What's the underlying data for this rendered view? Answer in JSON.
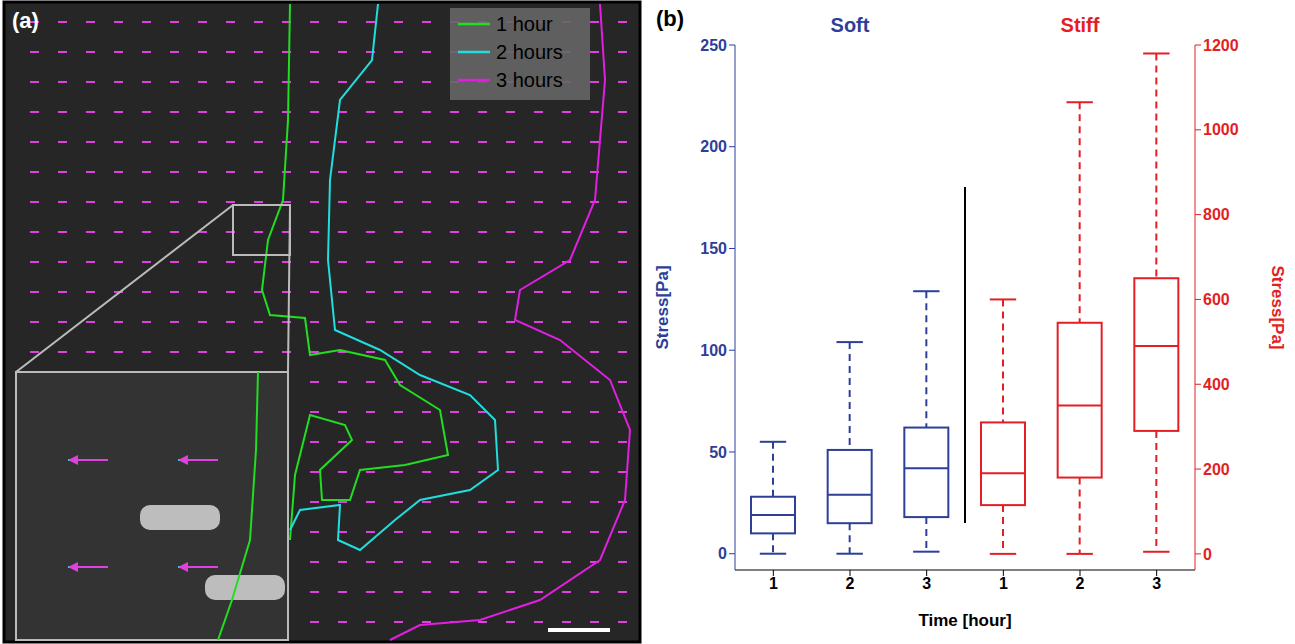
{
  "panel_a": {
    "label": "(a)",
    "legend": [
      {
        "name": "1 hour",
        "color": "#22dd22"
      },
      {
        "name": "2 hours",
        "color": "#22dddd"
      },
      {
        "name": "3 hours",
        "color": "#e020e0"
      }
    ]
  },
  "chart_data": {
    "type": "box",
    "label": "(b)",
    "categories": [
      "1",
      "2",
      "3",
      "1",
      "2",
      "3"
    ],
    "xlabel": "Time [hour]",
    "ylabel": "Stress[Pa]",
    "y2label": "Stress[Pa]",
    "ylim": [
      -8,
      250
    ],
    "yticks": [
      0,
      50,
      100,
      150,
      200,
      250
    ],
    "y2lim": [
      -38,
      1200
    ],
    "y2ticks": [
      0,
      200,
      400,
      600,
      800,
      1000,
      1200
    ],
    "series": [
      {
        "name": "Soft",
        "color": "#2d3f99",
        "axis": "y",
        "line_style": "dashed",
        "values": [
          {
            "min": 0,
            "q1": 10,
            "median": 19,
            "q3": 28,
            "max": 55
          },
          {
            "min": 0,
            "q1": 15,
            "median": 29,
            "q3": 51,
            "max": 104
          },
          {
            "min": 1,
            "q1": 18,
            "median": 42,
            "q3": 62,
            "max": 129
          },
          null,
          null,
          null
        ]
      },
      {
        "name": "Stiff",
        "color": "#e31e24",
        "axis": "y2",
        "line_style": "dashed",
        "values": [
          null,
          null,
          null,
          {
            "min": 0,
            "q1": 115,
            "median": 190,
            "q3": 310,
            "max": 600
          },
          {
            "min": 0,
            "q1": 180,
            "median": 350,
            "q3": 545,
            "max": 1065
          },
          {
            "min": 5,
            "q1": 290,
            "median": 490,
            "q3": 650,
            "max": 1180
          }
        ]
      }
    ]
  }
}
